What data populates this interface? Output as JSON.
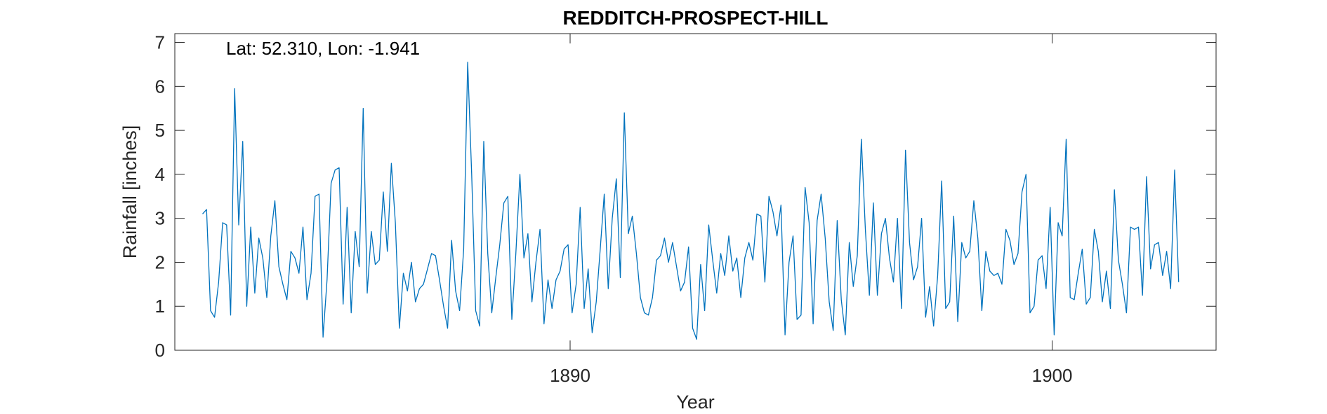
{
  "chart_data": {
    "type": "line",
    "title": "REDDITCH-PROSPECT-HILL",
    "annotation": "Lat: 52.310, Lon: -1.941",
    "xlabel": "Year",
    "ylabel": "Rainfall [inches]",
    "xlim": [
      1881.8,
      1903.4
    ],
    "ylim": [
      0,
      7.2
    ],
    "xticks": [
      1890,
      1900
    ],
    "xtick_labels": [
      "1890",
      "1900"
    ],
    "yticks": [
      0,
      1,
      2,
      3,
      4,
      5,
      6,
      7
    ],
    "ytick_labels": [
      "0",
      "1",
      "2",
      "3",
      "4",
      "5",
      "6",
      "7"
    ],
    "grid": false,
    "box": true,
    "series": [
      {
        "color": "#0072BD",
        "x_start": 1882.375,
        "x_step": 0.08333,
        "x_unit": "year",
        "values": [
          3.1,
          3.2,
          0.9,
          0.75,
          1.55,
          2.9,
          2.85,
          0.8,
          5.95,
          2.85,
          4.75,
          1.0,
          2.8,
          1.3,
          2.55,
          2.1,
          1.2,
          2.6,
          3.4,
          1.9,
          1.5,
          1.15,
          2.25,
          2.1,
          1.75,
          2.8,
          1.15,
          1.75,
          3.5,
          3.55,
          0.3,
          1.6,
          3.8,
          4.1,
          4.15,
          1.05,
          3.25,
          0.85,
          2.7,
          1.9,
          5.5,
          1.3,
          2.7,
          1.95,
          2.05,
          3.6,
          2.25,
          4.25,
          2.9,
          0.5,
          1.75,
          1.35,
          2.0,
          1.1,
          1.4,
          1.5,
          1.85,
          2.2,
          2.15,
          1.6,
          1.0,
          0.5,
          2.5,
          1.35,
          0.9,
          2.3,
          6.55,
          4.0,
          0.9,
          0.55,
          4.75,
          2.2,
          0.85,
          1.65,
          2.4,
          3.35,
          3.5,
          0.7,
          2.2,
          4.0,
          2.1,
          2.65,
          1.1,
          2.0,
          2.75,
          0.6,
          1.6,
          0.95,
          1.6,
          1.8,
          2.3,
          2.4,
          0.85,
          1.5,
          3.25,
          0.95,
          1.85,
          0.4,
          1.1,
          2.3,
          3.55,
          1.4,
          3.0,
          3.9,
          1.65,
          5.4,
          2.65,
          3.05,
          2.2,
          1.2,
          0.85,
          0.8,
          1.2,
          2.05,
          2.15,
          2.55,
          2.0,
          2.45,
          1.9,
          1.35,
          1.55,
          2.35,
          0.5,
          0.25,
          1.95,
          0.9,
          2.85,
          2.05,
          1.3,
          2.2,
          1.7,
          2.6,
          1.8,
          2.1,
          1.2,
          2.1,
          2.45,
          2.05,
          3.1,
          3.05,
          1.55,
          3.5,
          3.15,
          2.6,
          3.3,
          0.35,
          2.0,
          2.6,
          0.7,
          0.8,
          3.7,
          2.9,
          0.6,
          2.95,
          3.55,
          2.55,
          1.1,
          0.45,
          2.95,
          1.15,
          0.35,
          2.45,
          1.45,
          2.15,
          4.8,
          2.75,
          1.25,
          3.35,
          1.25,
          2.65,
          3.0,
          2.1,
          1.55,
          3.0,
          0.95,
          4.55,
          2.45,
          1.6,
          1.9,
          3.0,
          0.75,
          1.45,
          0.55,
          1.7,
          3.85,
          0.95,
          1.1,
          3.05,
          0.65,
          2.45,
          2.1,
          2.25,
          3.4,
          2.55,
          0.9,
          2.25,
          1.8,
          1.7,
          1.75,
          1.5,
          2.75,
          2.5,
          1.95,
          2.2,
          3.6,
          4.0,
          0.85,
          1.0,
          2.05,
          2.15,
          1.4,
          3.25,
          0.35,
          2.9,
          2.6,
          4.8,
          1.2,
          1.15,
          1.75,
          2.3,
          1.05,
          1.2,
          2.75,
          2.25,
          1.1,
          1.8,
          0.95,
          3.65,
          2.05,
          1.5,
          0.85,
          2.8,
          2.75,
          2.8,
          1.25,
          3.95,
          1.85,
          2.4,
          2.45,
          1.7,
          2.25,
          1.4,
          4.1,
          1.55
        ]
      }
    ]
  }
}
